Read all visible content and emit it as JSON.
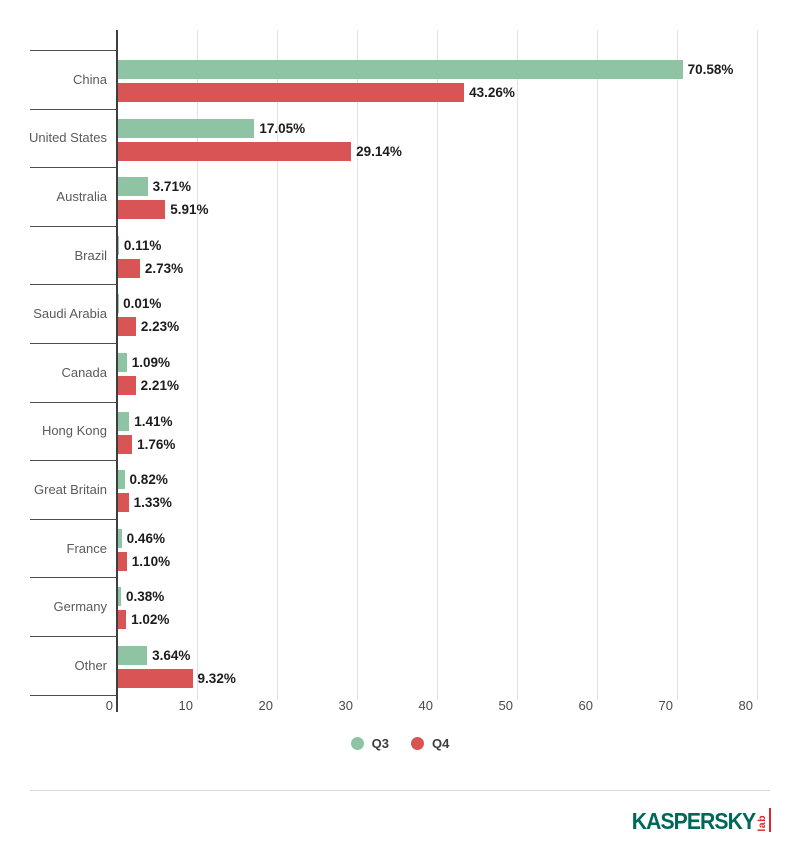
{
  "chart_data": {
    "type": "bar",
    "orientation": "horizontal",
    "categories": [
      "China",
      "United States",
      "Australia",
      "Brazil",
      "Saudi Arabia",
      "Canada",
      "Hong Kong",
      "Great Britain",
      "France",
      "Germany",
      "Other"
    ],
    "series": [
      {
        "name": "Q3",
        "color": "#8ec4a4",
        "values": [
          70.58,
          17.05,
          3.71,
          0.11,
          0.01,
          1.09,
          1.41,
          0.82,
          0.46,
          0.38,
          3.64
        ]
      },
      {
        "name": "Q4",
        "color": "#d95454",
        "values": [
          43.26,
          29.14,
          5.91,
          2.73,
          2.23,
          2.21,
          1.76,
          1.33,
          1.1,
          1.02,
          9.32
        ]
      }
    ],
    "value_suffix": "%",
    "value_decimals": 2,
    "xlim": [
      0,
      80
    ],
    "x_ticks": [
      0,
      10,
      20,
      30,
      40,
      50,
      60,
      70,
      80
    ],
    "grid": true,
    "legend_position": "bottom"
  },
  "legend": {
    "items": [
      {
        "label": "Q3",
        "color": "#8ec4a4"
      },
      {
        "label": "Q4",
        "color": "#d95454"
      }
    ]
  },
  "footer": {
    "brand": "KASPERSKY",
    "brand_sub": "lab"
  },
  "colors": {
    "q3_green": "#8ec4a4",
    "q4_red": "#d95454",
    "axis": "#3f3f3f",
    "gridline": "#e2e2e2",
    "logo_teal": "#00685a",
    "logo_red": "#e3232d"
  }
}
